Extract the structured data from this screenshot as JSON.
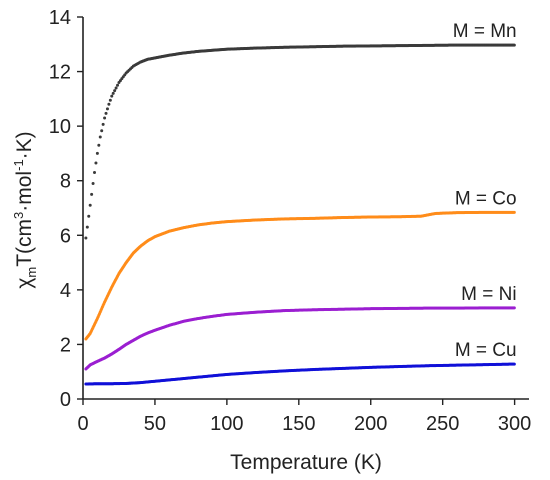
{
  "chart_data": {
    "type": "scatter",
    "xlabel": "Temperature (K)",
    "ylabel": {
      "chi": "χ",
      "sub_m": "m",
      "main": "T(cm",
      "sup3": "3",
      "mid": "·mol",
      "supneg": "-1",
      "end": "·K)"
    },
    "xlim": [
      0,
      310
    ],
    "ylim": [
      0,
      14
    ],
    "xticks": [
      0,
      50,
      100,
      150,
      200,
      250,
      300
    ],
    "yticks": [
      0,
      2,
      4,
      6,
      8,
      10,
      12,
      14
    ],
    "grid": false,
    "legend": "none",
    "series": [
      {
        "name": "M = Mn",
        "color": "#3a3a3a",
        "x": [
          2,
          4,
          6,
          8,
          10,
          12,
          15,
          18,
          20,
          25,
          30,
          35,
          40,
          45,
          50,
          60,
          70,
          80,
          90,
          100,
          120,
          140,
          160,
          180,
          200,
          220,
          240,
          260,
          280,
          300
        ],
        "y": [
          5.9,
          6.7,
          7.5,
          8.3,
          9.0,
          9.6,
          10.3,
          10.8,
          11.1,
          11.6,
          11.95,
          12.2,
          12.35,
          12.45,
          12.5,
          12.6,
          12.68,
          12.74,
          12.78,
          12.82,
          12.86,
          12.89,
          12.91,
          12.93,
          12.94,
          12.95,
          12.96,
          12.97,
          12.97,
          12.97
        ]
      },
      {
        "name": "M = Co",
        "color": "#ff8c1a",
        "x": [
          2,
          5,
          10,
          15,
          20,
          25,
          30,
          35,
          40,
          45,
          50,
          60,
          70,
          80,
          90,
          100,
          120,
          140,
          160,
          180,
          200,
          220,
          235,
          245,
          260,
          280,
          300
        ],
        "y": [
          2.2,
          2.4,
          2.95,
          3.55,
          4.1,
          4.6,
          5.0,
          5.35,
          5.6,
          5.8,
          5.95,
          6.15,
          6.28,
          6.38,
          6.45,
          6.5,
          6.56,
          6.6,
          6.62,
          6.65,
          6.67,
          6.68,
          6.7,
          6.8,
          6.83,
          6.84,
          6.84
        ]
      },
      {
        "name": "M = Ni",
        "color": "#9b1fd1",
        "x": [
          2,
          5,
          10,
          15,
          20,
          25,
          30,
          35,
          40,
          45,
          50,
          60,
          70,
          80,
          90,
          100,
          120,
          140,
          160,
          180,
          200,
          220,
          240,
          260,
          280,
          300
        ],
        "y": [
          1.1,
          1.25,
          1.38,
          1.5,
          1.65,
          1.82,
          2.0,
          2.15,
          2.3,
          2.42,
          2.52,
          2.7,
          2.85,
          2.95,
          3.03,
          3.1,
          3.18,
          3.24,
          3.27,
          3.29,
          3.31,
          3.32,
          3.33,
          3.33,
          3.34,
          3.34
        ]
      },
      {
        "name": "M = Cu",
        "color": "#1010d8",
        "x": [
          2,
          10,
          20,
          30,
          40,
          50,
          60,
          70,
          80,
          90,
          100,
          120,
          140,
          160,
          180,
          200,
          220,
          240,
          260,
          280,
          300
        ],
        "y": [
          0.55,
          0.56,
          0.56,
          0.57,
          0.6,
          0.65,
          0.7,
          0.75,
          0.8,
          0.85,
          0.9,
          0.97,
          1.03,
          1.08,
          1.12,
          1.16,
          1.19,
          1.22,
          1.24,
          1.26,
          1.28
        ]
      }
    ]
  }
}
